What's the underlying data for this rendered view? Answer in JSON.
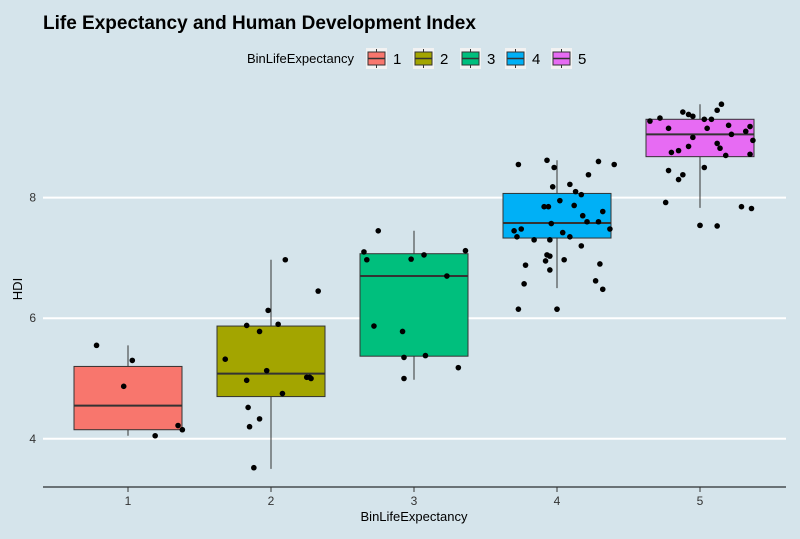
{
  "chart_data": {
    "type": "boxplot",
    "title": "Life Expectancy and Human Development Index",
    "xlabel": "BinLifeExpectancy",
    "ylabel": "HDI",
    "ylim": [
      3.2,
      10.3
    ],
    "yticks": [
      4,
      6,
      8
    ],
    "categories": [
      "1",
      "2",
      "3",
      "4",
      "5"
    ],
    "legend": {
      "title": "BinLifeExpectancy",
      "position": "top",
      "entries": [
        "1",
        "2",
        "3",
        "4",
        "5"
      ]
    },
    "colors": [
      "#f8766d",
      "#a3a500",
      "#00bf7d",
      "#00b0f6",
      "#e76bf3"
    ],
    "boxes": [
      {
        "category": "1",
        "whisker_low": 4.05,
        "q1": 4.15,
        "median": 4.55,
        "q3": 5.2,
        "whisker_high": 5.55,
        "outliers": []
      },
      {
        "category": "2",
        "whisker_low": 3.5,
        "q1": 4.7,
        "median": 5.08,
        "q3": 5.87,
        "whisker_high": 6.97,
        "outliers": []
      },
      {
        "category": "3",
        "whisker_low": 4.98,
        "q1": 5.37,
        "median": 6.7,
        "q3": 7.07,
        "whisker_high": 7.45,
        "outliers": []
      },
      {
        "category": "4",
        "whisker_low": 6.5,
        "q1": 7.33,
        "median": 7.58,
        "q3": 8.07,
        "whisker_high": 8.62,
        "outliers": [
          6.15
        ]
      },
      {
        "category": "5",
        "whisker_low": 7.83,
        "q1": 8.68,
        "median": 9.05,
        "q3": 9.3,
        "whisker_high": 9.55,
        "outliers": [
          7.54
        ]
      }
    ],
    "points": [
      {
        "x": 0.78,
        "y": 5.55
      },
      {
        "x": 0.97,
        "y": 4.87
      },
      {
        "x": 1.03,
        "y": 5.3
      },
      {
        "x": 1.19,
        "y": 4.05
      },
      {
        "x": 1.35,
        "y": 4.22
      },
      {
        "x": 1.38,
        "y": 4.15
      },
      {
        "x": 1.68,
        "y": 5.32
      },
      {
        "x": 1.83,
        "y": 5.88
      },
      {
        "x": 1.92,
        "y": 5.78
      },
      {
        "x": 1.98,
        "y": 6.13
      },
      {
        "x": 2.05,
        "y": 5.9
      },
      {
        "x": 2.1,
        "y": 6.97
      },
      {
        "x": 2.33,
        "y": 6.45
      },
      {
        "x": 1.97,
        "y": 5.13
      },
      {
        "x": 1.83,
        "y": 4.97
      },
      {
        "x": 1.92,
        "y": 4.33
      },
      {
        "x": 1.84,
        "y": 4.52
      },
      {
        "x": 1.85,
        "y": 4.2
      },
      {
        "x": 1.88,
        "y": 3.52
      },
      {
        "x": 2.08,
        "y": 4.75
      },
      {
        "x": 2.25,
        "y": 5.02
      },
      {
        "x": 2.27,
        "y": 5.02
      },
      {
        "x": 2.28,
        "y": 5.0
      },
      {
        "x": 2.65,
        "y": 7.1
      },
      {
        "x": 2.67,
        "y": 6.97
      },
      {
        "x": 2.75,
        "y": 7.45
      },
      {
        "x": 3.07,
        "y": 7.05
      },
      {
        "x": 3.36,
        "y": 7.12
      },
      {
        "x": 3.23,
        "y": 6.7
      },
      {
        "x": 2.98,
        "y": 6.98
      },
      {
        "x": 2.72,
        "y": 5.87
      },
      {
        "x": 2.92,
        "y": 5.78
      },
      {
        "x": 2.93,
        "y": 5.35
      },
      {
        "x": 3.08,
        "y": 5.38
      },
      {
        "x": 2.93,
        "y": 5.0
      },
      {
        "x": 3.31,
        "y": 5.18
      },
      {
        "x": 3.73,
        "y": 8.55
      },
      {
        "x": 3.93,
        "y": 8.62
      },
      {
        "x": 3.98,
        "y": 8.5
      },
      {
        "x": 4.22,
        "y": 8.38
      },
      {
        "x": 4.29,
        "y": 8.6
      },
      {
        "x": 4.4,
        "y": 8.55
      },
      {
        "x": 3.97,
        "y": 8.18
      },
      {
        "x": 4.09,
        "y": 8.22
      },
      {
        "x": 4.13,
        "y": 8.1
      },
      {
        "x": 4.17,
        "y": 8.05
      },
      {
        "x": 4.02,
        "y": 7.95
      },
      {
        "x": 4.12,
        "y": 7.87
      },
      {
        "x": 4.32,
        "y": 7.77
      },
      {
        "x": 3.94,
        "y": 7.85
      },
      {
        "x": 3.91,
        "y": 7.85
      },
      {
        "x": 4.18,
        "y": 7.7
      },
      {
        "x": 4.21,
        "y": 7.6
      },
      {
        "x": 4.29,
        "y": 7.6
      },
      {
        "x": 4.37,
        "y": 7.48
      },
      {
        "x": 3.96,
        "y": 7.57
      },
      {
        "x": 3.7,
        "y": 7.45
      },
      {
        "x": 3.75,
        "y": 7.48
      },
      {
        "x": 3.72,
        "y": 7.35
      },
      {
        "x": 3.84,
        "y": 7.3
      },
      {
        "x": 3.95,
        "y": 7.3
      },
      {
        "x": 4.04,
        "y": 7.42
      },
      {
        "x": 4.09,
        "y": 7.35
      },
      {
        "x": 4.17,
        "y": 7.2
      },
      {
        "x": 3.93,
        "y": 7.05
      },
      {
        "x": 3.95,
        "y": 7.03
      },
      {
        "x": 3.78,
        "y": 6.88
      },
      {
        "x": 3.77,
        "y": 6.57
      },
      {
        "x": 3.92,
        "y": 6.95
      },
      {
        "x": 4.05,
        "y": 6.97
      },
      {
        "x": 4.3,
        "y": 6.9
      },
      {
        "x": 4.32,
        "y": 6.48
      },
      {
        "x": 4.27,
        "y": 6.62
      },
      {
        "x": 3.95,
        "y": 6.8
      },
      {
        "x": 3.73,
        "y": 6.15
      },
      {
        "x": 4.0,
        "y": 6.15
      },
      {
        "x": 4.65,
        "y": 9.27
      },
      {
        "x": 4.72,
        "y": 9.32
      },
      {
        "x": 4.88,
        "y": 9.42
      },
      {
        "x": 4.92,
        "y": 9.38
      },
      {
        "x": 4.95,
        "y": 9.35
      },
      {
        "x": 5.03,
        "y": 9.3
      },
      {
        "x": 5.12,
        "y": 9.45
      },
      {
        "x": 5.15,
        "y": 9.55
      },
      {
        "x": 5.08,
        "y": 9.3
      },
      {
        "x": 5.05,
        "y": 9.15
      },
      {
        "x": 4.78,
        "y": 9.15
      },
      {
        "x": 5.2,
        "y": 9.2
      },
      {
        "x": 4.95,
        "y": 9.0
      },
      {
        "x": 5.12,
        "y": 8.9
      },
      {
        "x": 5.14,
        "y": 8.82
      },
      {
        "x": 4.92,
        "y": 8.85
      },
      {
        "x": 5.22,
        "y": 9.05
      },
      {
        "x": 5.32,
        "y": 9.1
      },
      {
        "x": 5.35,
        "y": 9.18
      },
      {
        "x": 5.37,
        "y": 8.95
      },
      {
        "x": 5.35,
        "y": 8.72
      },
      {
        "x": 4.8,
        "y": 8.75
      },
      {
        "x": 4.85,
        "y": 8.78
      },
      {
        "x": 5.18,
        "y": 8.7
      },
      {
        "x": 4.78,
        "y": 8.45
      },
      {
        "x": 5.03,
        "y": 8.5
      },
      {
        "x": 4.85,
        "y": 8.3
      },
      {
        "x": 4.88,
        "y": 8.38
      },
      {
        "x": 4.76,
        "y": 7.92
      },
      {
        "x": 5.12,
        "y": 7.53
      },
      {
        "x": 5.29,
        "y": 7.85
      },
      {
        "x": 5.36,
        "y": 7.82
      },
      {
        "x": 5.0,
        "y": 7.54
      }
    ]
  }
}
